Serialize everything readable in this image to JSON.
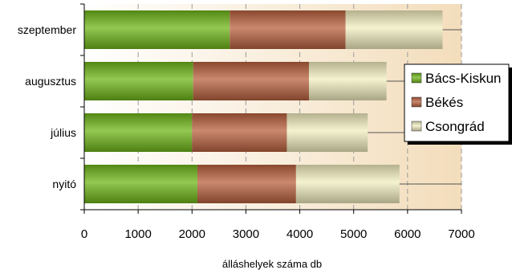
{
  "chart_data": {
    "type": "bar",
    "orientation": "horizontal",
    "stacked": true,
    "categories": [
      "szeptember",
      "augusztus",
      "július",
      "nyitó"
    ],
    "series": [
      {
        "name": "Bács-Kiskun",
        "values": [
          2700,
          2020,
          2000,
          2100
        ],
        "color": "#6fb51a"
      },
      {
        "name": "Békés",
        "values": [
          2150,
          2150,
          1760,
          1830
        ],
        "color": "#b8613f"
      },
      {
        "name": "Csongrád",
        "values": [
          1800,
          1440,
          1500,
          1920
        ],
        "color": "#f2edc0"
      }
    ],
    "xlim": [
      0,
      7000
    ],
    "xticks": [
      "0",
      "1000",
      "2000",
      "3000",
      "4000",
      "5000",
      "6000",
      "7000"
    ],
    "xlabel": "álláshelyek száma db",
    "ylabel": "",
    "title": "",
    "grid": "vertical dashed",
    "plot_background": "#f5e2c4",
    "legend_position": "right"
  }
}
